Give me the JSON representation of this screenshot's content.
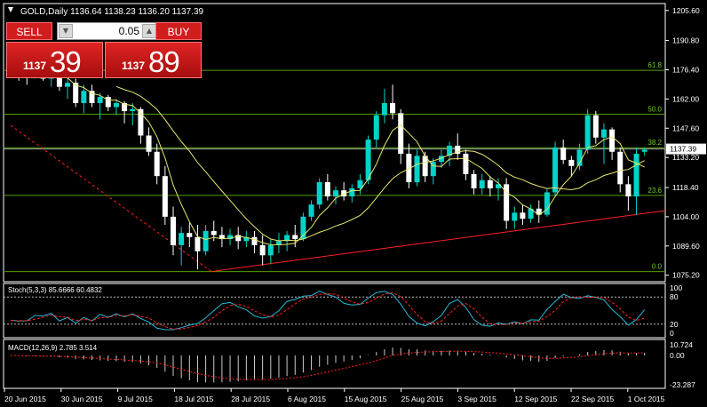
{
  "chart_header": "GOLD,Daily  1136.64 1138.23 1136.20 1137.39",
  "trade_panel": {
    "sell_label": "SELL",
    "buy_label": "BUY",
    "lot_value": "0.05",
    "sell_price_small": "1137",
    "sell_price_big": "39",
    "buy_price_small": "1137",
    "buy_price_big": "89"
  },
  "colors": {
    "bull": "#00d3c8",
    "bear": "#ffffff",
    "fib": "#4f9f00",
    "fib_text": "#6fcf2a",
    "ma": "#e6e66e",
    "trend": "#ff2020",
    "stoch_main": "#26b8d8",
    "stoch_signal": "#ff2020"
  },
  "chart_data": {
    "type": "candlestick",
    "instrument": "GOLD",
    "timeframe": "Daily",
    "price_axis": [
      "1205.60",
      "1190.80",
      "1176.40",
      "1162.00",
      "1147.60",
      "1133.20",
      "1118.40",
      "1104.00",
      "1089.60",
      "1075.20"
    ],
    "price_range": [
      1072,
      1209
    ],
    "current_price": "1137.39",
    "fib_levels": [
      {
        "label": "61.8",
        "price": 1176.1
      },
      {
        "label": "50.0",
        "price": 1154.5
      },
      {
        "label": "38.2",
        "price": 1138.0
      },
      {
        "label": "23.6",
        "price": 1114.5
      },
      {
        "label": "0.0",
        "price": 1077.0
      }
    ],
    "date_labels": [
      "20 Jun 2015",
      "30 Jun 2015",
      "9 Jul 2015",
      "18 Jul 2015",
      "28 Jul 2015",
      "6 Aug 2015",
      "15 Aug 2015",
      "25 Aug 2015",
      "3 Sep 2015",
      "12 Sep 2015",
      "22 Sep 2015",
      "1 Oct 2015"
    ],
    "stoch": {
      "label": "Stoch(5,3,3) 85.6666 60.4832",
      "axis": [
        "100",
        "80",
        "20",
        "0"
      ]
    },
    "macd": {
      "label": "MACD(12,26,9) 2.785 3.514",
      "axis": [
        "10.724",
        "0.00",
        "-23.287"
      ]
    },
    "ohlc": [
      [
        1180,
        1183,
        1176,
        1178
      ],
      [
        1178,
        1181,
        1171,
        1174
      ],
      [
        1174,
        1176,
        1169,
        1173
      ],
      [
        1173,
        1180,
        1172,
        1178
      ],
      [
        1178,
        1180,
        1171,
        1172
      ],
      [
        1172,
        1176,
        1168,
        1174
      ],
      [
        1174,
        1177,
        1166,
        1168
      ],
      [
        1168,
        1173,
        1162,
        1170
      ],
      [
        1170,
        1172,
        1158,
        1160
      ],
      [
        1160,
        1169,
        1155,
        1166
      ],
      [
        1166,
        1169,
        1158,
        1160
      ],
      [
        1160,
        1165,
        1152,
        1163
      ],
      [
        1163,
        1164,
        1156,
        1158
      ],
      [
        1158,
        1162,
        1154,
        1160
      ],
      [
        1160,
        1161,
        1150,
        1156
      ],
      [
        1156,
        1160,
        1149,
        1157
      ],
      [
        1157,
        1158,
        1140,
        1144
      ],
      [
        1144,
        1148,
        1134,
        1136
      ],
      [
        1136,
        1140,
        1120,
        1124
      ],
      [
        1124,
        1129,
        1100,
        1104
      ],
      [
        1104,
        1109,
        1085,
        1090
      ],
      [
        1090,
        1099,
        1080,
        1096
      ],
      [
        1096,
        1101,
        1089,
        1094
      ],
      [
        1094,
        1100,
        1078,
        1087
      ],
      [
        1087,
        1100,
        1085,
        1097
      ],
      [
        1097,
        1102,
        1092,
        1095
      ],
      [
        1095,
        1099,
        1089,
        1093
      ],
      [
        1093,
        1098,
        1090,
        1095
      ],
      [
        1095,
        1099,
        1088,
        1092
      ],
      [
        1092,
        1097,
        1089,
        1094
      ],
      [
        1094,
        1097,
        1086,
        1090
      ],
      [
        1090,
        1095,
        1080,
        1085
      ],
      [
        1085,
        1093,
        1081,
        1090
      ],
      [
        1090,
        1096,
        1086,
        1092
      ],
      [
        1092,
        1097,
        1087,
        1095
      ],
      [
        1095,
        1100,
        1089,
        1093
      ],
      [
        1093,
        1106,
        1092,
        1104
      ],
      [
        1104,
        1112,
        1102,
        1110
      ],
      [
        1110,
        1123,
        1108,
        1121
      ],
      [
        1121,
        1125,
        1112,
        1114
      ],
      [
        1114,
        1119,
        1110,
        1117
      ],
      [
        1117,
        1121,
        1112,
        1114
      ],
      [
        1114,
        1120,
        1111,
        1118
      ],
      [
        1118,
        1125,
        1115,
        1122
      ],
      [
        1122,
        1144,
        1120,
        1142
      ],
      [
        1142,
        1156,
        1138,
        1154
      ],
      [
        1154,
        1167,
        1150,
        1160
      ],
      [
        1160,
        1169,
        1152,
        1155
      ],
      [
        1155,
        1157,
        1130,
        1135
      ],
      [
        1135,
        1140,
        1118,
        1121
      ],
      [
        1121,
        1137,
        1119,
        1134
      ],
      [
        1134,
        1136,
        1121,
        1124
      ],
      [
        1124,
        1133,
        1120,
        1131
      ],
      [
        1131,
        1137,
        1128,
        1134
      ],
      [
        1134,
        1141,
        1129,
        1139
      ],
      [
        1139,
        1145,
        1132,
        1135
      ],
      [
        1135,
        1137,
        1122,
        1125
      ],
      [
        1125,
        1127,
        1115,
        1118
      ],
      [
        1118,
        1125,
        1115,
        1122
      ],
      [
        1122,
        1124,
        1114,
        1118
      ],
      [
        1118,
        1123,
        1112,
        1120
      ],
      [
        1120,
        1123,
        1098,
        1102
      ],
      [
        1102,
        1109,
        1098,
        1106
      ],
      [
        1106,
        1110,
        1100,
        1103
      ],
      [
        1103,
        1110,
        1101,
        1108
      ],
      [
        1108,
        1112,
        1101,
        1105
      ],
      [
        1105,
        1118,
        1104,
        1116
      ],
      [
        1116,
        1141,
        1114,
        1138
      ],
      [
        1138,
        1142,
        1130,
        1132
      ],
      [
        1132,
        1134,
        1124,
        1129
      ],
      [
        1129,
        1140,
        1127,
        1137
      ],
      [
        1137,
        1157,
        1135,
        1154
      ],
      [
        1154,
        1156,
        1140,
        1143
      ],
      [
        1143,
        1150,
        1130,
        1147
      ],
      [
        1147,
        1148,
        1132,
        1136
      ],
      [
        1136,
        1138,
        1116,
        1120
      ],
      [
        1120,
        1124,
        1107,
        1114
      ],
      [
        1114,
        1138,
        1105,
        1135
      ],
      [
        1136,
        1138,
        1134,
        1137
      ]
    ]
  }
}
